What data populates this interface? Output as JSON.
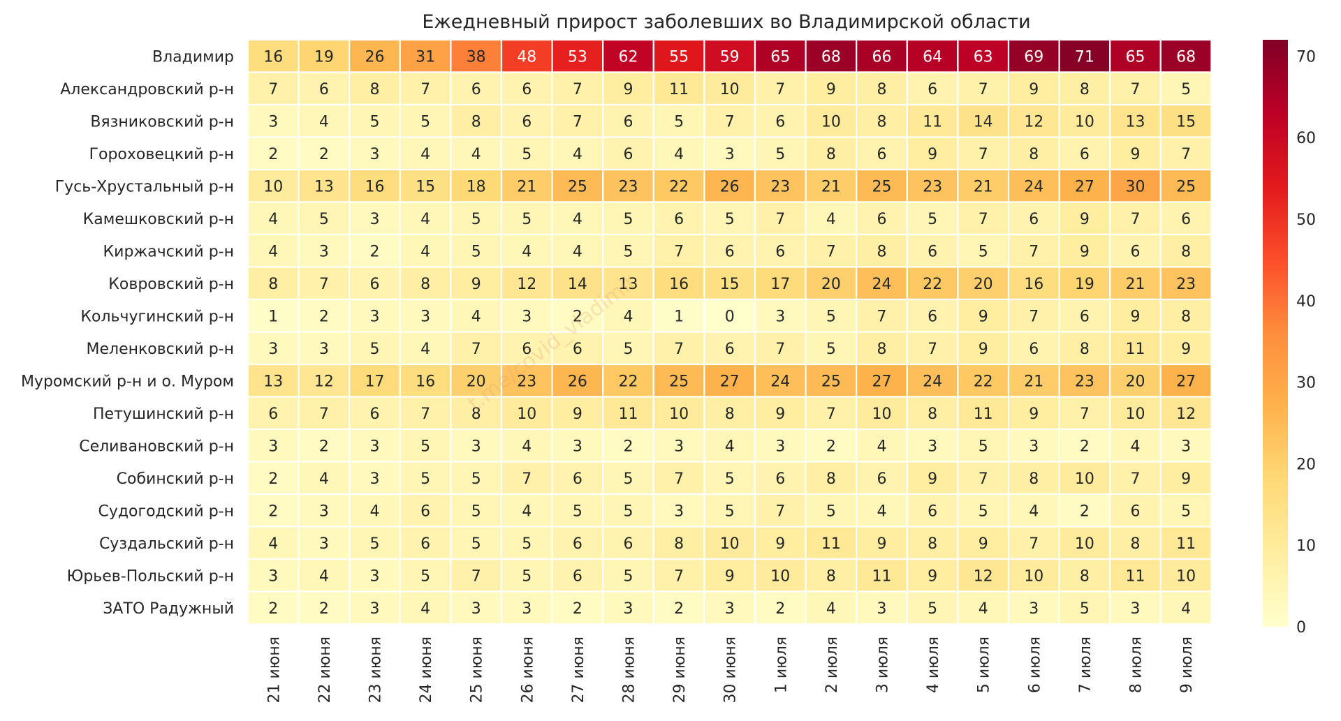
{
  "chart_data": {
    "type": "heatmap",
    "title": "Ежедневный прирост заболевших во Владимирской области",
    "xlabel": "",
    "ylabel": "",
    "columns": [
      "21 июня",
      "22 июня",
      "23 июня",
      "24 июня",
      "25 июня",
      "26 июня",
      "27 июня",
      "28 июня",
      "29 июня",
      "30 июня",
      "1 июля",
      "2 июля",
      "3 июля",
      "4 июля",
      "5 июля",
      "6 июля",
      "7 июля",
      "8 июля",
      "9 июля"
    ],
    "rows": [
      "Владимир",
      "Александровский р-н",
      "Вязниковский р-н",
      "Гороховецкий р-н",
      "Гусь-Хрустальный р-н",
      "Камешковский р-н",
      "Киржачский р-н",
      "Ковровский р-н",
      "Кольчугинский р-н",
      "Меленковский р-н",
      "Муромский р-н и о. Муром",
      "Петушинский р-н",
      "Селивановский р-н",
      "Собинский р-н",
      "Судогодский р-н",
      "Суздальский р-н",
      "Юрьев-Польский р-н",
      "ЗАТО Радужный"
    ],
    "values": [
      [
        16,
        19,
        26,
        31,
        38,
        48,
        53,
        62,
        55,
        59,
        65,
        68,
        66,
        64,
        63,
        69,
        71,
        65,
        68
      ],
      [
        7,
        6,
        8,
        7,
        6,
        6,
        7,
        9,
        11,
        10,
        7,
        9,
        8,
        6,
        7,
        9,
        8,
        7,
        5
      ],
      [
        3,
        4,
        5,
        5,
        8,
        6,
        7,
        6,
        5,
        7,
        6,
        10,
        8,
        11,
        14,
        12,
        10,
        13,
        15
      ],
      [
        2,
        2,
        3,
        4,
        4,
        5,
        4,
        6,
        4,
        3,
        5,
        8,
        6,
        9,
        7,
        8,
        6,
        9,
        7
      ],
      [
        10,
        13,
        16,
        15,
        18,
        21,
        25,
        23,
        22,
        26,
        23,
        21,
        25,
        23,
        21,
        24,
        27,
        30,
        25
      ],
      [
        4,
        5,
        3,
        4,
        5,
        5,
        4,
        5,
        6,
        5,
        7,
        4,
        6,
        5,
        7,
        6,
        9,
        7,
        6
      ],
      [
        4,
        3,
        2,
        4,
        5,
        4,
        4,
        5,
        7,
        6,
        6,
        7,
        8,
        6,
        5,
        7,
        9,
        6,
        8
      ],
      [
        8,
        7,
        6,
        8,
        9,
        12,
        14,
        13,
        16,
        15,
        17,
        20,
        24,
        22,
        20,
        16,
        19,
        21,
        23
      ],
      [
        1,
        2,
        3,
        3,
        4,
        3,
        2,
        4,
        1,
        0,
        3,
        5,
        7,
        6,
        9,
        7,
        6,
        9,
        8
      ],
      [
        3,
        3,
        5,
        4,
        7,
        6,
        6,
        5,
        7,
        6,
        7,
        5,
        8,
        7,
        9,
        6,
        8,
        11,
        9
      ],
      [
        13,
        12,
        17,
        16,
        20,
        23,
        26,
        22,
        25,
        27,
        24,
        25,
        27,
        24,
        22,
        21,
        23,
        20,
        27
      ],
      [
        6,
        7,
        6,
        7,
        8,
        10,
        9,
        11,
        10,
        8,
        9,
        7,
        10,
        8,
        11,
        9,
        7,
        10,
        12
      ],
      [
        3,
        2,
        3,
        5,
        3,
        4,
        3,
        2,
        3,
        4,
        3,
        2,
        4,
        3,
        5,
        3,
        2,
        4,
        3
      ],
      [
        2,
        4,
        3,
        5,
        5,
        7,
        6,
        5,
        7,
        5,
        6,
        8,
        6,
        9,
        7,
        8,
        10,
        7,
        9
      ],
      [
        2,
        3,
        4,
        6,
        5,
        4,
        5,
        5,
        3,
        5,
        7,
        5,
        4,
        6,
        5,
        4,
        2,
        6,
        5
      ],
      [
        4,
        3,
        5,
        6,
        5,
        5,
        6,
        6,
        8,
        10,
        9,
        11,
        9,
        8,
        9,
        7,
        10,
        8,
        11
      ],
      [
        3,
        4,
        3,
        5,
        7,
        5,
        6,
        5,
        7,
        9,
        10,
        8,
        11,
        9,
        12,
        10,
        8,
        11,
        10
      ],
      [
        2,
        2,
        3,
        4,
        3,
        3,
        2,
        3,
        2,
        3,
        2,
        4,
        3,
        5,
        4,
        3,
        5,
        3,
        4
      ]
    ],
    "vmin": 0,
    "vmax": 72,
    "colorbar_ticks": [
      0,
      10,
      20,
      30,
      40,
      50,
      60,
      70
    ],
    "colormap": "YlOrRd",
    "colormap_stops": [
      "#ffffcc",
      "#ffeda0",
      "#fed976",
      "#feb24c",
      "#fd8d3c",
      "#fc4e2a",
      "#e31a1c",
      "#bd0026",
      "#800026"
    ],
    "grid": false,
    "legend": "colorbar-right",
    "watermark": "t.me/covid_vladimir",
    "text_color_dark": "#262626",
    "text_color_light": "#ffffff",
    "cell_gap_color": "#ffffff"
  }
}
